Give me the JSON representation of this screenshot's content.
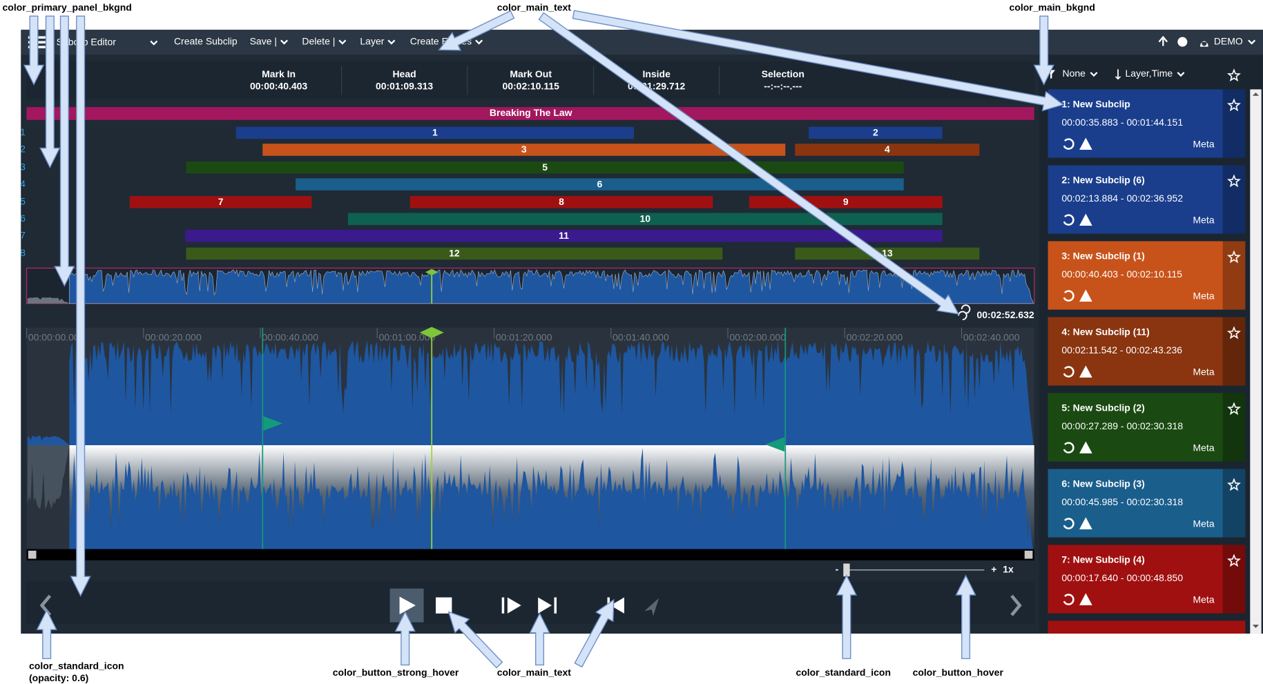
{
  "annotations": [
    {
      "label": "color_primary_panel_bkgnd"
    },
    {
      "label": "color_main_text"
    },
    {
      "label": "color_main_bkgnd"
    },
    {
      "label": "color_standard_icon",
      "note": "(opacity: 0.6)"
    },
    {
      "label": "color_button_strong_hover"
    },
    {
      "label": "color_main_text"
    },
    {
      "label": "color_standard_icon"
    },
    {
      "label": "color_button_hover"
    }
  ],
  "menu": {
    "title": "Subclip Editor",
    "items": [
      "Create Subclip",
      "Save |",
      "Delete |",
      "Layer",
      "Create Entries"
    ],
    "user": "DEMO"
  },
  "timecodes": [
    {
      "label": "Mark In",
      "value": "00:00:40.403"
    },
    {
      "label": "Head",
      "value": "00:01:09.313"
    },
    {
      "label": "Mark Out",
      "value": "00:02:10.115"
    },
    {
      "label": "Inside",
      "value": "00:01:29.712"
    },
    {
      "label": "Selection",
      "value": "--:--:--.---"
    }
  ],
  "banner": "Breaking The Law",
  "track_rows": [
    "1",
    "2",
    "3",
    "4",
    "5",
    "6",
    "7",
    "8"
  ],
  "clips": [
    "1",
    "2",
    "3",
    "4",
    "5",
    "6",
    "7",
    "8",
    "9",
    "10",
    "11",
    "12",
    "13"
  ],
  "duration": "00:02:52.632",
  "ruler": [
    "00:00:00.000",
    "00:00:20.000",
    "00:00:40.000",
    "00:01:00.000",
    "00:01:20.000",
    "00:01:40.000",
    "00:02:00.000",
    "00:02:20.000",
    "00:02:40.000"
  ],
  "zoom": {
    "minus": "-",
    "plus": "+",
    "speed": "1x"
  },
  "sort": {
    "filter": "None",
    "order": "Layer,Time"
  },
  "subclips": [
    {
      "title": "1: New Subclip",
      "range": "00:00:35.883 - 00:01:44.151",
      "meta": "Meta"
    },
    {
      "title": "2: New Subclip (6)",
      "range": "00:02:13.884 - 00:02:36.952",
      "meta": "Meta"
    },
    {
      "title": "3: New Subclip (1)",
      "range": "00:00:40.403 - 00:02:10.115",
      "meta": "Meta"
    },
    {
      "title": "4: New Subclip (11)",
      "range": "00:02:11.542 - 00:02:43.236",
      "meta": "Meta"
    },
    {
      "title": "5: New Subclip (2)",
      "range": "00:00:27.289 - 00:02:30.318",
      "meta": "Meta"
    },
    {
      "title": "6: New Subclip (3)",
      "range": "00:00:45.985 - 00:02:30.318",
      "meta": "Meta"
    },
    {
      "title": "7: New Subclip (4)",
      "range": "00:00:17.640 - 00:00:48.850",
      "meta": "Meta"
    }
  ]
}
